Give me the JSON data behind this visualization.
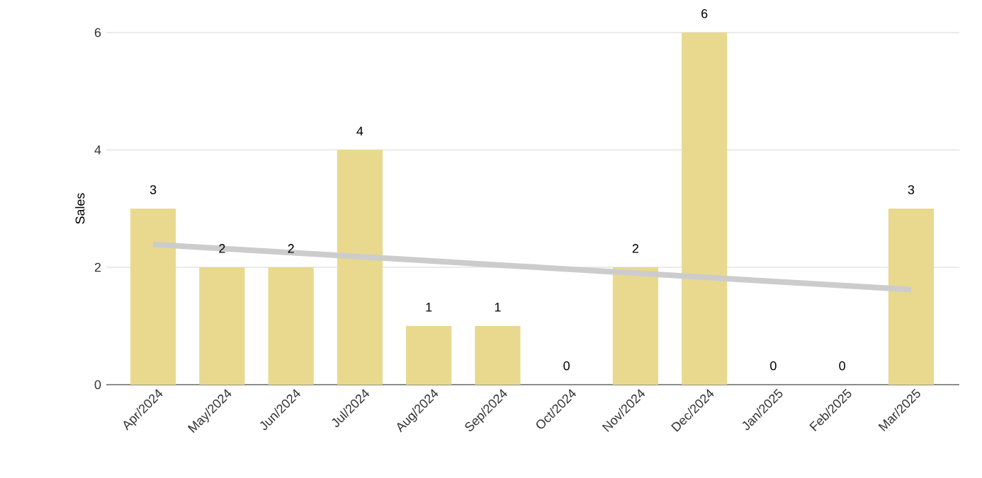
{
  "chart_data": {
    "type": "bar",
    "ylabel": "Sales",
    "categories": [
      "Apr/2024",
      "May/2024",
      "Jun/2024",
      "Jul/2024",
      "Aug/2024",
      "Sep/2024",
      "Oct/2024",
      "Nov/2024",
      "Dec/2024",
      "Jan/2025",
      "Feb/2025",
      "Mar/2025"
    ],
    "series": [
      {
        "color": "#e8d98f",
        "values": [
          3,
          2,
          2,
          4,
          1,
          1,
          0,
          2,
          6,
          0,
          0,
          3
        ],
        "value_labels": [
          "3",
          "2",
          "2",
          "4",
          "1",
          "1",
          "0",
          "2",
          "6",
          "0",
          "0",
          "3"
        ]
      },
      {
        "type": "line",
        "color": "#cccccc",
        "values": [
          2.39,
          2.32,
          2.25,
          2.18,
          2.11,
          2.04,
          1.97,
          1.9,
          1.83,
          1.76,
          1.69,
          1.62
        ]
      }
    ],
    "ylim": [
      0,
      6
    ],
    "yticks": [
      0,
      2,
      4,
      6
    ],
    "grid": "y"
  }
}
